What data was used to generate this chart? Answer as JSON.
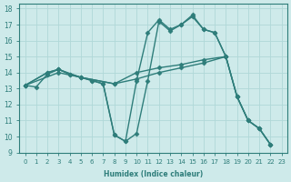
{
  "bg_color": "#ceeaea",
  "grid_color": "#b0d8d8",
  "line_color": "#2e7d7a",
  "marker": "D",
  "markersize": 2.5,
  "linewidth": 1.0,
  "xlabel": "Humidex (Indice chaleur)",
  "xlim": [
    -0.5,
    23.5
  ],
  "ylim": [
    9,
    18.3
  ],
  "xticks": [
    0,
    1,
    2,
    3,
    4,
    5,
    6,
    7,
    8,
    9,
    10,
    11,
    12,
    13,
    14,
    15,
    16,
    17,
    18,
    19,
    20,
    21,
    22,
    23
  ],
  "yticks": [
    9,
    10,
    11,
    12,
    13,
    14,
    15,
    16,
    17,
    18
  ],
  "series": [
    {
      "points": [
        [
          0,
          13.2
        ],
        [
          1,
          13.1
        ],
        [
          2,
          13.9
        ],
        [
          3,
          14.2
        ],
        [
          4,
          13.9
        ],
        [
          5,
          13.7
        ],
        [
          6,
          13.5
        ],
        [
          7,
          13.3
        ],
        [
          8,
          10.1
        ],
        [
          9,
          9.7
        ],
        [
          10,
          13.5
        ],
        [
          11,
          16.5
        ],
        [
          12,
          17.3
        ],
        [
          13,
          16.7
        ],
        [
          14,
          17.0
        ],
        [
          15,
          17.5
        ],
        [
          16,
          16.7
        ],
        [
          17,
          16.5
        ],
        [
          18,
          15.0
        ]
      ]
    },
    {
      "points": [
        [
          0,
          13.2
        ],
        [
          2,
          14.0
        ],
        [
          3,
          14.2
        ],
        [
          5,
          13.7
        ],
        [
          8,
          13.3
        ],
        [
          10,
          13.6
        ],
        [
          12,
          14.0
        ],
        [
          14,
          14.3
        ],
        [
          16,
          14.6
        ],
        [
          18,
          15.0
        ],
        [
          19,
          12.5
        ],
        [
          20,
          11.0
        ],
        [
          21,
          10.5
        ],
        [
          22,
          9.5
        ]
      ]
    },
    {
      "points": [
        [
          0,
          13.2
        ],
        [
          2,
          14.0
        ],
        [
          3,
          14.2
        ],
        [
          4,
          13.9
        ],
        [
          6,
          13.5
        ],
        [
          7,
          13.3
        ],
        [
          8,
          10.1
        ],
        [
          9,
          9.7
        ],
        [
          10,
          10.2
        ],
        [
          11,
          13.5
        ],
        [
          12,
          17.2
        ],
        [
          13,
          16.6
        ],
        [
          14,
          17.0
        ],
        [
          15,
          17.6
        ],
        [
          16,
          16.7
        ],
        [
          17,
          16.5
        ],
        [
          18,
          15.0
        ],
        [
          19,
          12.5
        ],
        [
          20,
          11.0
        ],
        [
          21,
          10.5
        ],
        [
          22,
          9.5
        ]
      ]
    },
    {
      "points": [
        [
          0,
          13.2
        ],
        [
          3,
          14.0
        ],
        [
          5,
          13.7
        ],
        [
          8,
          13.3
        ],
        [
          10,
          14.0
        ],
        [
          12,
          14.3
        ],
        [
          14,
          14.5
        ],
        [
          16,
          14.8
        ],
        [
          18,
          15.0
        ],
        [
          19,
          12.5
        ],
        [
          20,
          11.0
        ],
        [
          21,
          10.5
        ],
        [
          22,
          9.5
        ]
      ]
    }
  ]
}
